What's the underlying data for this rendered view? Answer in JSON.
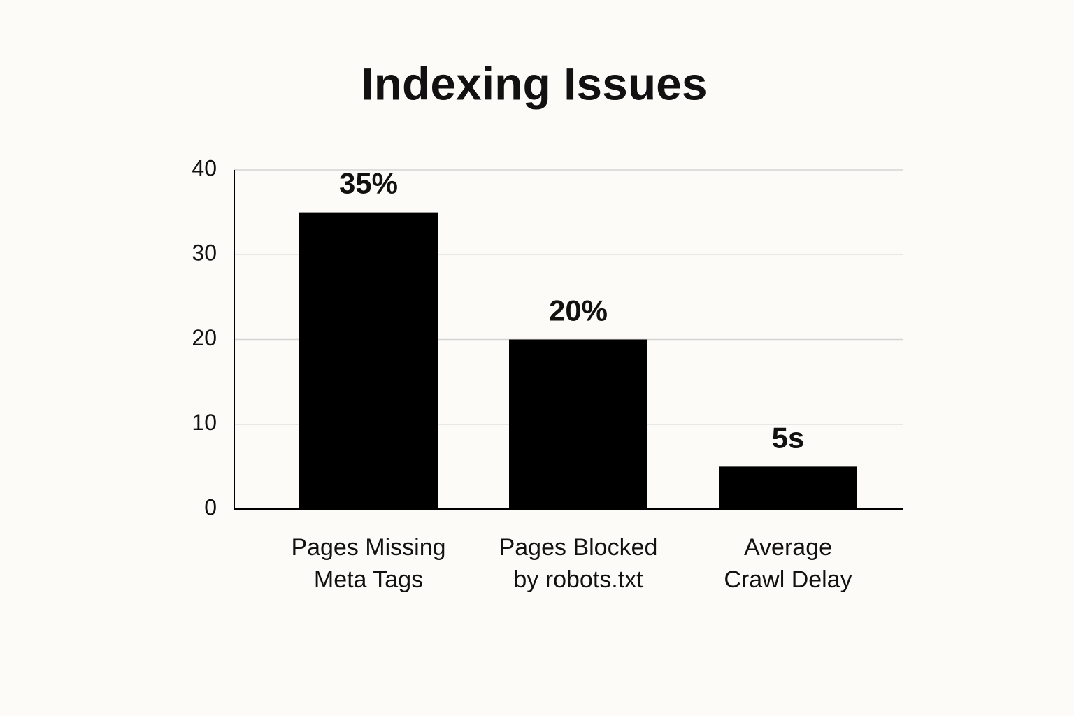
{
  "chart_data": {
    "type": "bar",
    "title": "Indexing Issues",
    "categories": [
      "Pages Missing\nMeta Tags",
      "Pages Blocked\nby robots.txt",
      "Average\nCrawl Delay"
    ],
    "values": [
      35,
      20,
      5
    ],
    "value_labels": [
      "35%",
      "20%",
      "5s"
    ],
    "color": "#000000",
    "ylim": [
      0,
      40
    ],
    "yticks": [
      0,
      10,
      20,
      30,
      40
    ],
    "grid": true
  }
}
